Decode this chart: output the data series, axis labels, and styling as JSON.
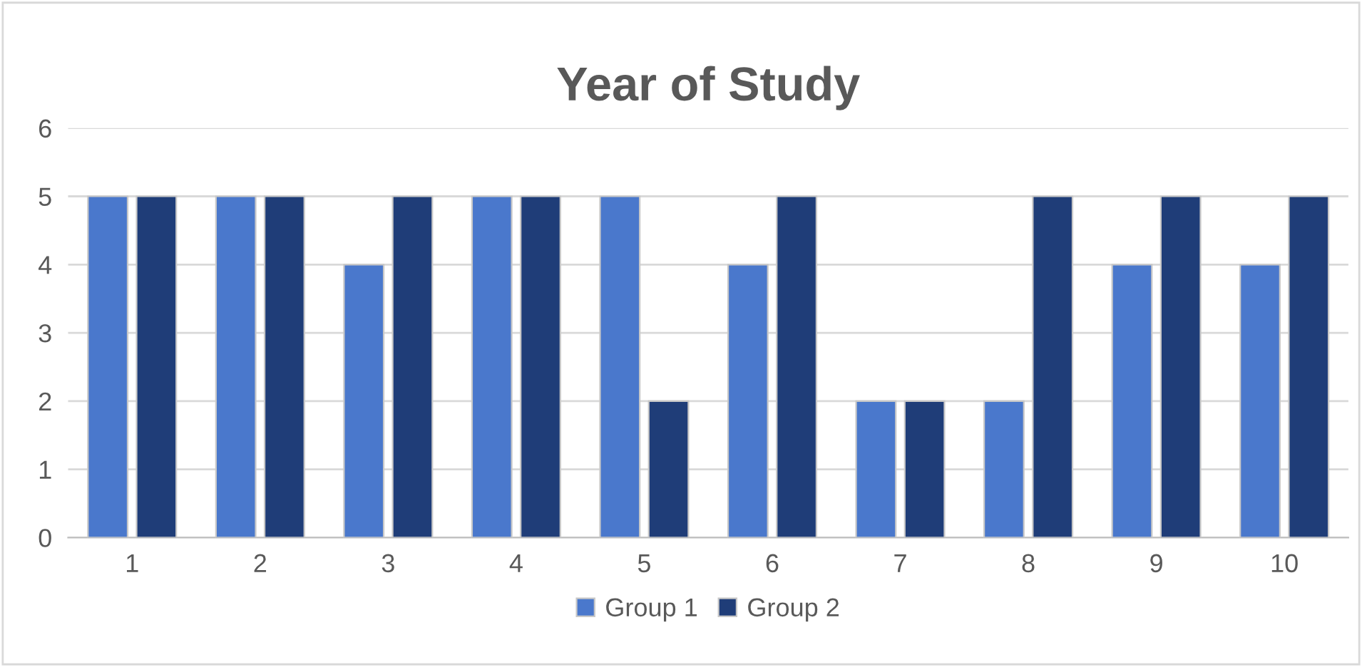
{
  "chart_data": {
    "type": "bar",
    "title": "Year of Study",
    "categories": [
      "1",
      "2",
      "3",
      "4",
      "5",
      "6",
      "7",
      "8",
      "9",
      "10"
    ],
    "series": [
      {
        "name": "Group 1",
        "color": "#4a78cc",
        "values": [
          5,
          5,
          4,
          5,
          5,
          4,
          2,
          2,
          4,
          4
        ]
      },
      {
        "name": "Group 2",
        "color": "#1f3d78",
        "values": [
          5,
          5,
          5,
          5,
          2,
          5,
          2,
          5,
          5,
          5
        ]
      }
    ],
    "ylim": [
      0,
      6
    ],
    "yticks": [
      0,
      1,
      2,
      3,
      4,
      5,
      6
    ],
    "grid": "y",
    "legend": "bottom"
  }
}
